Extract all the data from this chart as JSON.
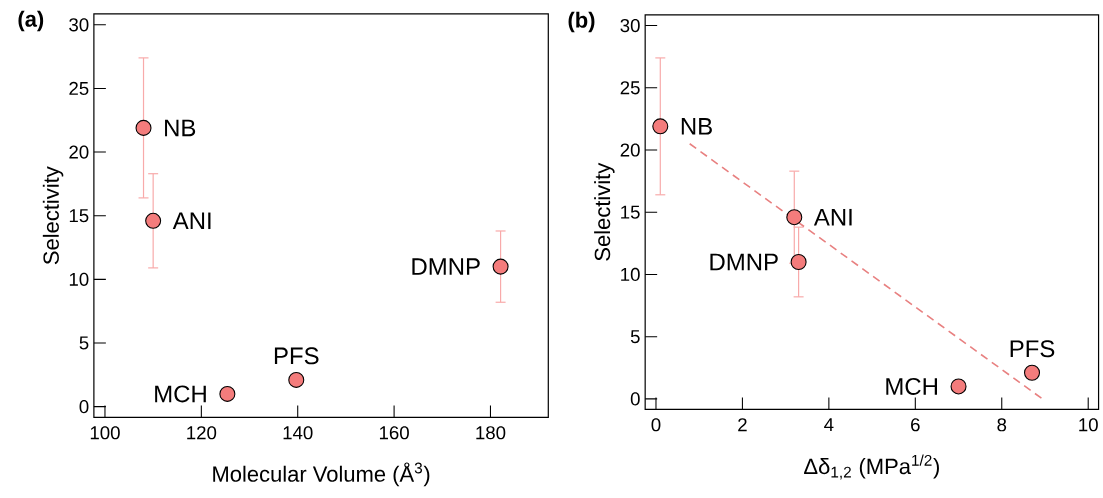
{
  "chart_data": [
    {
      "type": "scatter",
      "marker": "circle",
      "title": "(a)",
      "xlabel": "Molecular Volume (Å$^{3}$)",
      "ylabel": "Selectivity",
      "xlim": [
        97.7,
        192
      ],
      "ylim": [
        -0.85,
        30.85
      ],
      "xticks": [
        100,
        120,
        140,
        160,
        180
      ],
      "yticks": [
        0,
        5,
        10,
        15,
        20,
        25,
        30
      ],
      "series": [
        {
          "color": "#f47c7c",
          "x": [
            108,
            110,
            182.1,
            125.4,
            139.7
          ],
          "values": [
            21.9,
            14.6,
            11.0,
            1.0,
            2.1
          ],
          "errors": [
            5.5,
            3.7,
            2.8,
            null,
            null
          ]
        }
      ],
      "annotations": [
        {
          "text": "NB",
          "x": 108,
          "y": 21.9
        },
        {
          "text": "ANI",
          "x": 110,
          "y": 14.6
        },
        {
          "text": "DMNP",
          "x": 182.1,
          "y": 11.0
        },
        {
          "text": "MCH",
          "x": 125.4,
          "y": 1.0
        },
        {
          "text": "PFS",
          "x": 139.7,
          "y": 2.1
        }
      ]
    },
    {
      "type": "scatter",
      "marker": "circle",
      "title": "(b)",
      "xlabel": "Δδ$_{1,2}$ (MPa$^{1/2}$)",
      "ylabel": "Selectivity",
      "xlim": [
        -0.25,
        10.24
      ],
      "ylim": [
        -0.85,
        30.85
      ],
      "xticks": [
        0,
        2,
        4,
        6,
        8,
        10
      ],
      "yticks": [
        0,
        5,
        10,
        15,
        20,
        25,
        30
      ],
      "series": [
        {
          "color": "#f47c7c",
          "x": [
            0.1,
            3.2,
            3.3,
            7.0,
            8.7
          ],
          "values": [
            21.9,
            14.6,
            11.0,
            1.0,
            2.1
          ],
          "errors": [
            5.5,
            3.7,
            2.8,
            null,
            null
          ]
        },
        {
          "type": "line",
          "color": "#e88080",
          "line_style": "dashed",
          "marker": "none",
          "x": [
            0.78,
            8.94
          ],
          "values": [
            20.5,
            0
          ]
        }
      ],
      "annotations": [
        {
          "text": "NB",
          "x": 0.1,
          "y": 21.9
        },
        {
          "text": "ANI",
          "x": 3.2,
          "y": 14.6
        },
        {
          "text": "DMNP",
          "x": 3.3,
          "y": 11.0
        },
        {
          "text": "MCH",
          "x": 7.0,
          "y": 1.0
        },
        {
          "text": "PFS",
          "x": 8.7,
          "y": 2.1
        }
      ]
    }
  ]
}
